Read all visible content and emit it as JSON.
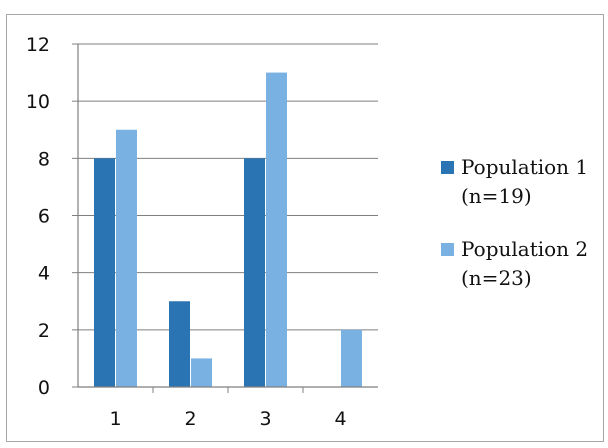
{
  "chart_data": {
    "type": "bar",
    "categories": [
      "1",
      "2",
      "3",
      "4"
    ],
    "series": [
      {
        "name": "Population 1 (n=19)",
        "legend_lines": [
          "Population 1",
          "(n=19)"
        ],
        "values": [
          8,
          3,
          8,
          0
        ],
        "color": "#2a74b4"
      },
      {
        "name": "Population 2 (n=23)",
        "legend_lines": [
          "Population 2",
          "(n=23)"
        ],
        "values": [
          9,
          1,
          11,
          2
        ],
        "color": "#79b1e2"
      }
    ],
    "title": "",
    "xlabel": "",
    "ylabel": "",
    "ylim": [
      0,
      12
    ],
    "yticks": [
      0,
      2,
      4,
      6,
      8,
      10,
      12
    ],
    "grid": true,
    "legend_position": "right"
  }
}
